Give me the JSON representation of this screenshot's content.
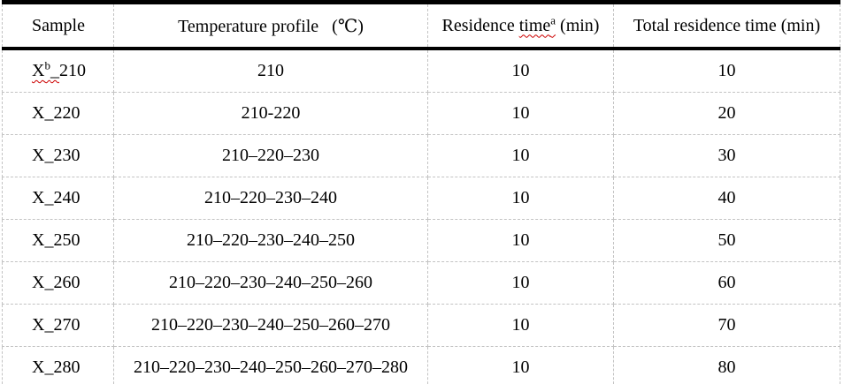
{
  "table": {
    "header": {
      "sample": "Sample",
      "temperature_profile": "Temperature profile   (℃)",
      "residence_pre": "Residence ",
      "residence_word": "time",
      "residence_sup": "a",
      "residence_post": " (min)",
      "total": "Total residence time (min)"
    },
    "rows": [
      {
        "w1": "X",
        "sup": "b",
        "w2": "_",
        "rest": "210",
        "profile": "210",
        "res": "10",
        "total": "10"
      },
      {
        "w1": "",
        "sup": "",
        "w2": "",
        "rest": "X_220",
        "profile": "210-220",
        "res": "10",
        "total": "20"
      },
      {
        "w1": "",
        "sup": "",
        "w2": "",
        "rest": "X_230",
        "profile": "210–220–230",
        "res": "10",
        "total": "30"
      },
      {
        "w1": "",
        "sup": "",
        "w2": "",
        "rest": "X_240",
        "profile": "210–220–230–240",
        "res": "10",
        "total": "40"
      },
      {
        "w1": "",
        "sup": "",
        "w2": "",
        "rest": "X_250",
        "profile": "210–220–230–240–250",
        "res": "10",
        "total": "50"
      },
      {
        "w1": "",
        "sup": "",
        "w2": "",
        "rest": "X_260",
        "profile": "210–220–230–240–250–260",
        "res": "10",
        "total": "60"
      },
      {
        "w1": "",
        "sup": "",
        "w2": "",
        "rest": "X_270",
        "profile": "210–220–230–240–250–260–270",
        "res": "10",
        "total": "70"
      },
      {
        "w1": "",
        "sup": "",
        "w2": "",
        "rest": "X_280",
        "profile": "210–220–230–240–250–260–270–280",
        "res": "10",
        "total": "80"
      }
    ]
  },
  "colors": {
    "spellcheck_underline": "#cc0000",
    "gridline": "#c3c3c3",
    "rule": "#000000",
    "text": "#000000",
    "background": "#ffffff"
  }
}
